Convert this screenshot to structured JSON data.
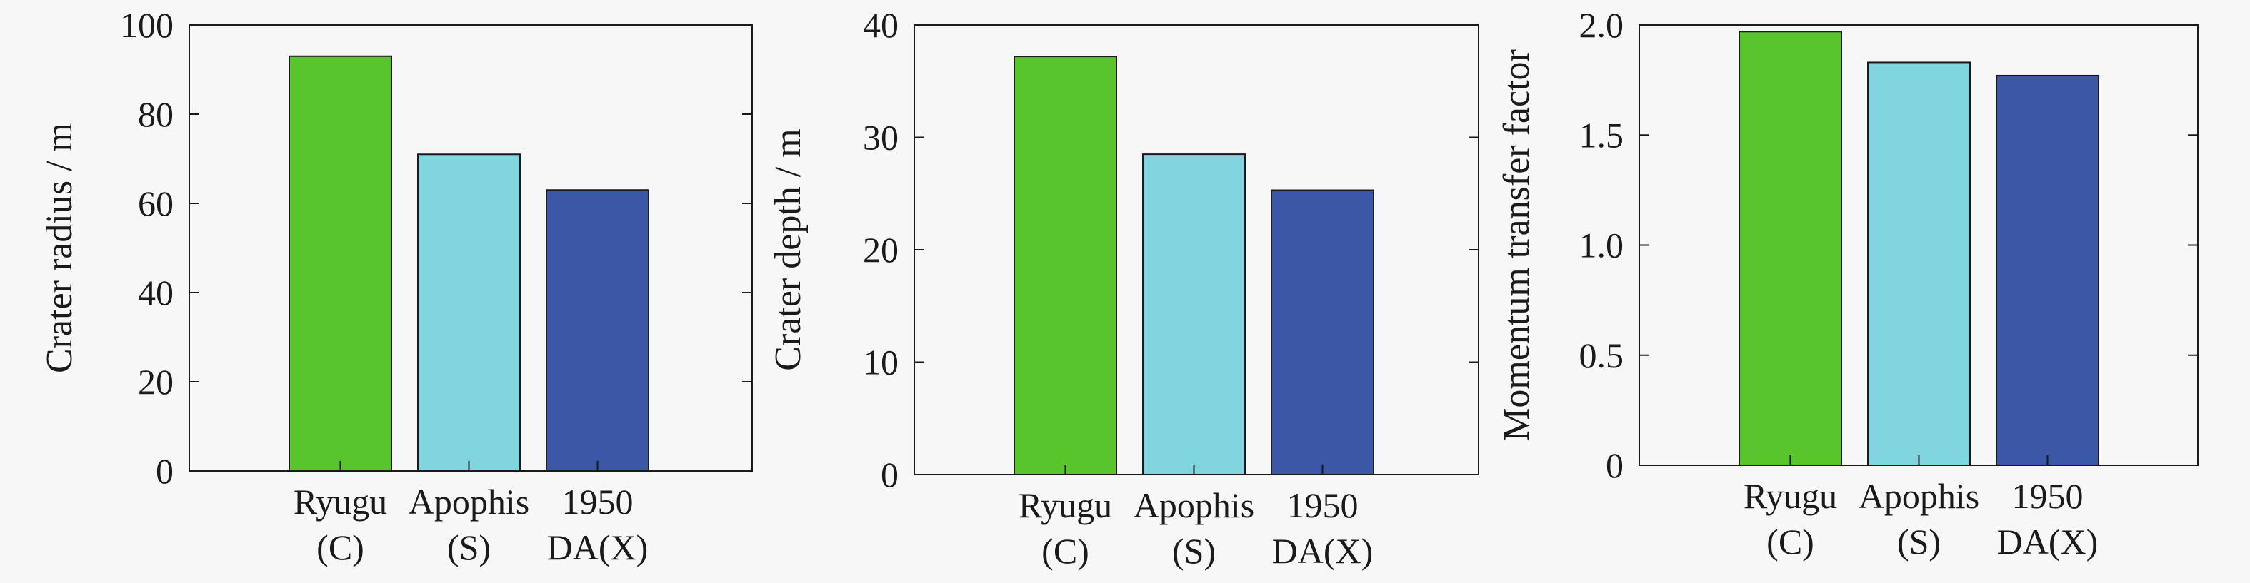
{
  "chart_data": [
    {
      "type": "bar",
      "categories": [
        [
          "Ryugu",
          "(C)"
        ],
        [
          "Apophis",
          "(S)"
        ],
        [
          "1950",
          "DA(X)"
        ]
      ],
      "values": [
        93,
        71,
        63
      ],
      "ylabel": "Crater radius / m",
      "xlabel": "",
      "ylim": [
        0,
        100
      ],
      "yticks": [
        "0",
        "20",
        "40",
        "60",
        "80",
        "100"
      ],
      "bar_colors": [
        "#57c52b",
        "#80d5df",
        "#3b57a6"
      ]
    },
    {
      "type": "bar",
      "categories": [
        [
          "Ryugu",
          "(C)"
        ],
        [
          "Apophis",
          "(S)"
        ],
        [
          "1950",
          "DA(X)"
        ]
      ],
      "values": [
        37.2,
        28.5,
        25.3
      ],
      "ylabel": "Crater depth / m",
      "xlabel": "",
      "ylim": [
        0,
        40
      ],
      "yticks": [
        "0",
        "10",
        "20",
        "30",
        "40"
      ],
      "bar_colors": [
        "#57c52b",
        "#80d5df",
        "#3b57a6"
      ]
    },
    {
      "type": "bar",
      "categories": [
        [
          "Ryugu",
          "(C)"
        ],
        [
          "Apophis",
          "(S)"
        ],
        [
          "1950",
          "DA(X)"
        ]
      ],
      "values": [
        1.97,
        1.83,
        1.77
      ],
      "ylabel": "Momentum transfer factor",
      "xlabel": "",
      "ylim": [
        0,
        2.0
      ],
      "yticks": [
        "0",
        "0.5",
        "1.0",
        "1.5",
        "2.0"
      ],
      "bar_colors": [
        "#57c52b",
        "#80d5df",
        "#3b57a6"
      ]
    }
  ]
}
